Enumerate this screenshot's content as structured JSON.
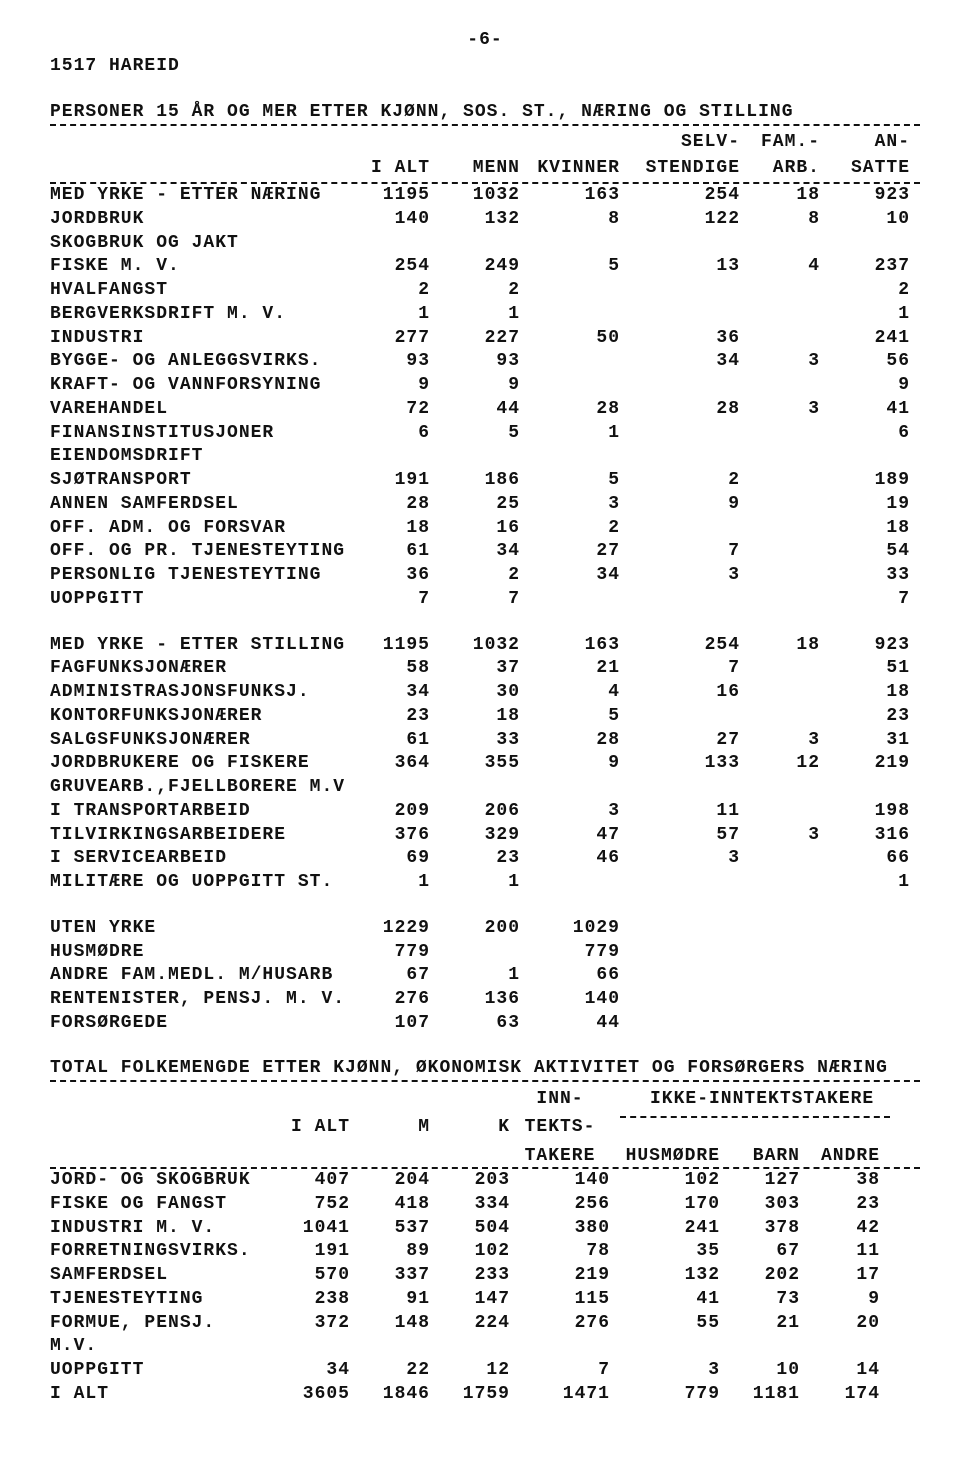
{
  "page_number": "-6-",
  "municipality": "1517 HAREID",
  "section1": {
    "title": "PERSONER 15 ÅR OG MER ETTER KJØNN, SOS. ST., NÆRING OG STILLING",
    "headers_top": [
      "",
      "",
      "",
      "SELV-",
      "FAM.-",
      "AN-"
    ],
    "headers_bottom": [
      "I ALT",
      "MENN",
      "KVINNER",
      "STENDIGE",
      "ARB.",
      "SATTE"
    ],
    "groups": [
      {
        "rows": [
          {
            "label": "MED YRKE - ETTER NÆRING",
            "ialt": "1195",
            "menn": "1032",
            "kvin": "163",
            "selv": "254",
            "fam": "18",
            "an": "923"
          },
          {
            "label": "JORDBRUK",
            "ialt": "140",
            "menn": "132",
            "kvin": "8",
            "selv": "122",
            "fam": "8",
            "an": "10"
          },
          {
            "label": "SKOGBRUK OG JAKT",
            "ialt": "",
            "menn": "",
            "kvin": "",
            "selv": "",
            "fam": "",
            "an": ""
          },
          {
            "label": "FISKE M. V.",
            "ialt": "254",
            "menn": "249",
            "kvin": "5",
            "selv": "13",
            "fam": "4",
            "an": "237"
          },
          {
            "label": "HVALFANGST",
            "ialt": "2",
            "menn": "2",
            "kvin": "",
            "selv": "",
            "fam": "",
            "an": "2"
          },
          {
            "label": "BERGVERKSDRIFT M. V.",
            "ialt": "1",
            "menn": "1",
            "kvin": "",
            "selv": "",
            "fam": "",
            "an": "1"
          },
          {
            "label": "INDUSTRI",
            "ialt": "277",
            "menn": "227",
            "kvin": "50",
            "selv": "36",
            "fam": "",
            "an": "241"
          },
          {
            "label": "BYGGE- OG ANLEGGSVIRKS.",
            "ialt": "93",
            "menn": "93",
            "kvin": "",
            "selv": "34",
            "fam": "3",
            "an": "56"
          },
          {
            "label": "KRAFT- OG VANNFORSYNING",
            "ialt": "9",
            "menn": "9",
            "kvin": "",
            "selv": "",
            "fam": "",
            "an": "9"
          },
          {
            "label": "VAREHANDEL",
            "ialt": "72",
            "menn": "44",
            "kvin": "28",
            "selv": "28",
            "fam": "3",
            "an": "41"
          },
          {
            "label": "FINANSINSTITUSJONER",
            "ialt": "6",
            "menn": "5",
            "kvin": "1",
            "selv": "",
            "fam": "",
            "an": "6"
          },
          {
            "label": "EIENDOMSDRIFT",
            "ialt": "",
            "menn": "",
            "kvin": "",
            "selv": "",
            "fam": "",
            "an": ""
          },
          {
            "label": "SJØTRANSPORT",
            "ialt": "191",
            "menn": "186",
            "kvin": "5",
            "selv": "2",
            "fam": "",
            "an": "189"
          },
          {
            "label": "ANNEN SAMFERDSEL",
            "ialt": "28",
            "menn": "25",
            "kvin": "3",
            "selv": "9",
            "fam": "",
            "an": "19"
          },
          {
            "label": "OFF. ADM. OG FORSVAR",
            "ialt": "18",
            "menn": "16",
            "kvin": "2",
            "selv": "",
            "fam": "",
            "an": "18"
          },
          {
            "label": "OFF. OG PR. TJENESTEYTING",
            "ialt": "61",
            "menn": "34",
            "kvin": "27",
            "selv": "7",
            "fam": "",
            "an": "54"
          },
          {
            "label": "PERSONLIG TJENESTEYTING",
            "ialt": "36",
            "menn": "2",
            "kvin": "34",
            "selv": "3",
            "fam": "",
            "an": "33"
          },
          {
            "label": "UOPPGITT",
            "ialt": "7",
            "menn": "7",
            "kvin": "",
            "selv": "",
            "fam": "",
            "an": "7"
          }
        ]
      },
      {
        "rows": [
          {
            "label": "MED YRKE - ETTER STILLING",
            "ialt": "1195",
            "menn": "1032",
            "kvin": "163",
            "selv": "254",
            "fam": "18",
            "an": "923"
          },
          {
            "label": "FAGFUNKSJONÆRER",
            "ialt": "58",
            "menn": "37",
            "kvin": "21",
            "selv": "7",
            "fam": "",
            "an": "51"
          },
          {
            "label": "ADMINISTRASJONSFUNKSJ.",
            "ialt": "34",
            "menn": "30",
            "kvin": "4",
            "selv": "16",
            "fam": "",
            "an": "18"
          },
          {
            "label": "KONTORFUNKSJONÆRER",
            "ialt": "23",
            "menn": "18",
            "kvin": "5",
            "selv": "",
            "fam": "",
            "an": "23"
          },
          {
            "label": "SALGSFUNKSJONÆRER",
            "ialt": "61",
            "menn": "33",
            "kvin": "28",
            "selv": "27",
            "fam": "3",
            "an": "31"
          },
          {
            "label": "JORDBRUKERE OG FISKERE",
            "ialt": "364",
            "menn": "355",
            "kvin": "9",
            "selv": "133",
            "fam": "12",
            "an": "219"
          },
          {
            "label": "GRUVEARB.,FJELLBORERE M.V",
            "ialt": "",
            "menn": "",
            "kvin": "",
            "selv": "",
            "fam": "",
            "an": ""
          },
          {
            "label": "I TRANSPORTARBEID",
            "ialt": "209",
            "menn": "206",
            "kvin": "3",
            "selv": "11",
            "fam": "",
            "an": "198"
          },
          {
            "label": "TILVIRKINGSARBEIDERE",
            "ialt": "376",
            "menn": "329",
            "kvin": "47",
            "selv": "57",
            "fam": "3",
            "an": "316"
          },
          {
            "label": "I SERVICEARBEID",
            "ialt": "69",
            "menn": "23",
            "kvin": "46",
            "selv": "3",
            "fam": "",
            "an": "66"
          },
          {
            "label": "MILITÆRE OG UOPPGITT ST.",
            "ialt": "1",
            "menn": "1",
            "kvin": "",
            "selv": "",
            "fam": "",
            "an": "1"
          }
        ]
      },
      {
        "rows": [
          {
            "label": "UTEN YRKE",
            "ialt": "1229",
            "menn": "200",
            "kvin": "1029",
            "selv": "",
            "fam": "",
            "an": ""
          },
          {
            "label": "HUSMØDRE",
            "ialt": "779",
            "menn": "",
            "kvin": "779",
            "selv": "",
            "fam": "",
            "an": ""
          },
          {
            "label": "ANDRE FAM.MEDL. M/HUSARB",
            "ialt": "67",
            "menn": "1",
            "kvin": "66",
            "selv": "",
            "fam": "",
            "an": ""
          },
          {
            "label": "RENTENISTER, PENSJ. M. V.",
            "ialt": "276",
            "menn": "136",
            "kvin": "140",
            "selv": "",
            "fam": "",
            "an": ""
          },
          {
            "label": "FORSØRGEDE",
            "ialt": "107",
            "menn": "63",
            "kvin": "44",
            "selv": "",
            "fam": "",
            "an": ""
          }
        ]
      }
    ]
  },
  "section2": {
    "title": "TOTAL FOLKEMENGDE ETTER KJØNN, ØKONOMISK AKTIVITET OG FORSØRGERS NÆRING",
    "head_ikke": "IKKE-INNTEKTSTAKERE",
    "head_inn1": "INN-",
    "head_inn2": "TEKTS-",
    "head_inn3": "TAKERE",
    "headers": [
      "I ALT",
      "M",
      "K",
      "",
      "HUSMØDRE",
      "BARN",
      "ANDRE"
    ],
    "rows": [
      {
        "label": "JORD- OG SKOGBRUK",
        "ialt": "407",
        "m": "204",
        "k": "203",
        "inn": "140",
        "hus": "102",
        "barn": "127",
        "andre": "38"
      },
      {
        "label": "FISKE OG FANGST",
        "ialt": "752",
        "m": "418",
        "k": "334",
        "inn": "256",
        "hus": "170",
        "barn": "303",
        "andre": "23"
      },
      {
        "label": "INDUSTRI M. V.",
        "ialt": "1041",
        "m": "537",
        "k": "504",
        "inn": "380",
        "hus": "241",
        "barn": "378",
        "andre": "42"
      },
      {
        "label": "FORRETNINGSVIRKS.",
        "ialt": "191",
        "m": "89",
        "k": "102",
        "inn": "78",
        "hus": "35",
        "barn": "67",
        "andre": "11"
      },
      {
        "label": "SAMFERDSEL",
        "ialt": "570",
        "m": "337",
        "k": "233",
        "inn": "219",
        "hus": "132",
        "barn": "202",
        "andre": "17"
      },
      {
        "label": "TJENESTEYTING",
        "ialt": "238",
        "m": "91",
        "k": "147",
        "inn": "115",
        "hus": "41",
        "barn": "73",
        "andre": "9"
      },
      {
        "label": "FORMUE, PENSJ. M.V.",
        "ialt": "372",
        "m": "148",
        "k": "224",
        "inn": "276",
        "hus": "55",
        "barn": "21",
        "andre": "20"
      },
      {
        "label": "UOPPGITT",
        "ialt": "34",
        "m": "22",
        "k": "12",
        "inn": "7",
        "hus": "3",
        "barn": "10",
        "andre": "14"
      },
      {
        "label": "I ALT",
        "ialt": "3605",
        "m": "1846",
        "k": "1759",
        "inn": "1471",
        "hus": "779",
        "barn": "1181",
        "andre": "174"
      }
    ]
  }
}
